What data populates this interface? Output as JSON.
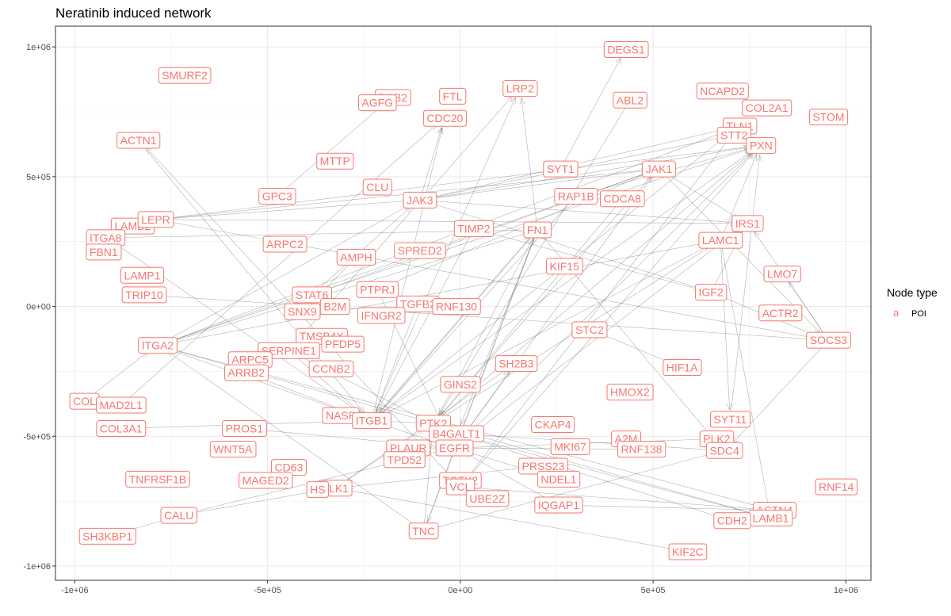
{
  "chart_data": {
    "type": "network",
    "title": "Neratinib induced network",
    "xlabel": "",
    "ylabel": "",
    "xlim": [
      -1050000,
      1065000
    ],
    "ylim": [
      -1055000,
      1080000
    ],
    "x_ticks": [
      -1000000,
      -500000,
      0,
      500000,
      1000000
    ],
    "x_tick_labels": [
      "-1e+06",
      "-5e+05",
      "0e+00",
      "5e+05",
      "1e+06"
    ],
    "y_ticks": [
      1000000,
      500000,
      0,
      -500000,
      -1000000
    ],
    "y_tick_labels": [
      "1e+06",
      "5e+05",
      "0e+00",
      "-5e+05",
      "-1e+06"
    ],
    "grid": true,
    "colors": {
      "node": "#f8766d",
      "edge": "#555555",
      "grid": "#ebebeb",
      "panel_border": "#333333"
    },
    "legend": {
      "title": "Node type",
      "key": "a",
      "label": "POI",
      "position": "right"
    },
    "nodes": [
      {
        "label": "DEGS1",
        "x": 430000,
        "y": 990000
      },
      {
        "label": "SMURF2",
        "x": -715000,
        "y": 890000
      },
      {
        "label": "LRP2",
        "x": 155000,
        "y": 840000
      },
      {
        "label": "NCAPD2",
        "x": 680000,
        "y": 830000
      },
      {
        "label": "FTL",
        "x": -20000,
        "y": 810000
      },
      {
        "label": "DAB2",
        "x": -175000,
        "y": 805000
      },
      {
        "label": "ABL2",
        "x": 440000,
        "y": 795000
      },
      {
        "label": "AGFG",
        "x": -215000,
        "y": 785000
      },
      {
        "label": "COL2A1",
        "x": 795000,
        "y": 765000
      },
      {
        "label": "CDC20",
        "x": -40000,
        "y": 725000
      },
      {
        "label": "STOM",
        "x": 955000,
        "y": 730000
      },
      {
        "label": "TLN1",
        "x": 725000,
        "y": 695000
      },
      {
        "label": "STT2",
        "x": 710000,
        "y": 660000
      },
      {
        "label": "ACTN1",
        "x": -835000,
        "y": 640000
      },
      {
        "label": "PXN",
        "x": 780000,
        "y": 620000
      },
      {
        "label": "MTTP",
        "x": -325000,
        "y": 560000
      },
      {
        "label": "SYT1",
        "x": 260000,
        "y": 530000
      },
      {
        "label": "JAK1",
        "x": 515000,
        "y": 530000
      },
      {
        "label": "CLU",
        "x": -215000,
        "y": 460000
      },
      {
        "label": "GPC3",
        "x": -475000,
        "y": 425000
      },
      {
        "label": "RAP1B",
        "x": 300000,
        "y": 425000
      },
      {
        "label": "CDCA8",
        "x": 420000,
        "y": 415000
      },
      {
        "label": "JAK3",
        "x": -105000,
        "y": 410000
      },
      {
        "label": "IRS1",
        "x": 745000,
        "y": 320000
      },
      {
        "label": "LAMB2",
        "x": -850000,
        "y": 310000
      },
      {
        "label": "LEPR",
        "x": -790000,
        "y": 335000
      },
      {
        "label": "TIMP2",
        "x": 35000,
        "y": 300000
      },
      {
        "label": "FN1",
        "x": 200000,
        "y": 295000
      },
      {
        "label": "ITGA8",
        "x": -920000,
        "y": 265000
      },
      {
        "label": "LAMC1",
        "x": 675000,
        "y": 255000
      },
      {
        "label": "ARPC2",
        "x": -455000,
        "y": 240000
      },
      {
        "label": "SPRED2",
        "x": -105000,
        "y": 215000
      },
      {
        "label": "FBN1",
        "x": -925000,
        "y": 210000
      },
      {
        "label": "AMPH",
        "x": -270000,
        "y": 190000
      },
      {
        "label": "KIF15",
        "x": 270000,
        "y": 155000
      },
      {
        "label": "LMO7",
        "x": 835000,
        "y": 125000
      },
      {
        "label": "LAMP1",
        "x": -825000,
        "y": 120000
      },
      {
        "label": "PTPRJ",
        "x": -215000,
        "y": 65000
      },
      {
        "label": "IGF2",
        "x": 650000,
        "y": 55000
      },
      {
        "label": "TRIP10",
        "x": -820000,
        "y": 45000
      },
      {
        "label": "STAT6",
        "x": -385000,
        "y": 45000
      },
      {
        "label": "TGFB2",
        "x": -110000,
        "y": 10000
      },
      {
        "label": "B2M",
        "x": -325000,
        "y": 0
      },
      {
        "label": "RNF130",
        "x": -10000,
        "y": 0
      },
      {
        "label": "SNX9",
        "x": -410000,
        "y": -20000
      },
      {
        "label": "ACTR2",
        "x": 830000,
        "y": -25000
      },
      {
        "label": "IFNGR2",
        "x": -205000,
        "y": -35000
      },
      {
        "label": "STC2",
        "x": 335000,
        "y": -90000
      },
      {
        "label": "TMSB4X",
        "x": -360000,
        "y": -115000
      },
      {
        "label": "SOCS3",
        "x": 955000,
        "y": -130000
      },
      {
        "label": "ITGA2",
        "x": -785000,
        "y": -150000
      },
      {
        "label": "PFDP5",
        "x": -305000,
        "y": -145000
      },
      {
        "label": "SERPINE1",
        "x": -445000,
        "y": -170000
      },
      {
        "label": "ARPC5",
        "x": -545000,
        "y": -205000
      },
      {
        "label": "SH2B3",
        "x": 145000,
        "y": -220000
      },
      {
        "label": "HIF1A",
        "x": 575000,
        "y": -235000
      },
      {
        "label": "CCNB2",
        "x": -335000,
        "y": -240000
      },
      {
        "label": "ARRB2",
        "x": -555000,
        "y": -255000
      },
      {
        "label": "GINS2",
        "x": 0,
        "y": -300000
      },
      {
        "label": "HMOX2",
        "x": 440000,
        "y": -330000
      },
      {
        "label": "COL",
        "x": -975000,
        "y": -365000
      },
      {
        "label": "MAD2L1",
        "x": -880000,
        "y": -380000
      },
      {
        "label": "NASP",
        "x": -310000,
        "y": -420000
      },
      {
        "label": "SYT11",
        "x": 700000,
        "y": -435000
      },
      {
        "label": "ITGB1",
        "x": -230000,
        "y": -440000
      },
      {
        "label": "PTK2",
        "x": -70000,
        "y": -450000
      },
      {
        "label": "CKAP4",
        "x": 240000,
        "y": -455000
      },
      {
        "label": "COL3A1",
        "x": -880000,
        "y": -470000
      },
      {
        "label": "PROS1",
        "x": -560000,
        "y": -470000
      },
      {
        "label": "B4GALT1",
        "x": -10000,
        "y": -490000
      },
      {
        "label": "PLK2",
        "x": 665000,
        "y": -510000
      },
      {
        "label": "A2M",
        "x": 430000,
        "y": -510000
      },
      {
        "label": "MKI67",
        "x": 285000,
        "y": -540000
      },
      {
        "label": "RNF138",
        "x": 470000,
        "y": -550000
      },
      {
        "label": "PLAUR",
        "x": -135000,
        "y": -545000
      },
      {
        "label": "EGFR",
        "x": -15000,
        "y": -545000
      },
      {
        "label": "WNT5A",
        "x": -590000,
        "y": -550000
      },
      {
        "label": "SDC4",
        "x": 685000,
        "y": -555000
      },
      {
        "label": "TPD52",
        "x": -145000,
        "y": -590000
      },
      {
        "label": "PRSS23",
        "x": 215000,
        "y": -615000
      },
      {
        "label": "CD63",
        "x": -445000,
        "y": -620000
      },
      {
        "label": "NDEL1",
        "x": 255000,
        "y": -665000
      },
      {
        "label": "TNFRSF1B",
        "x": -785000,
        "y": -665000
      },
      {
        "label": "MAGED2",
        "x": -505000,
        "y": -670000
      },
      {
        "label": "TCTX2",
        "x": 0,
        "y": -670000
      },
      {
        "label": "RNF14",
        "x": 975000,
        "y": -695000
      },
      {
        "label": "VCL",
        "x": 0,
        "y": -695000
      },
      {
        "label": "PLK1",
        "x": -325000,
        "y": -700000
      },
      {
        "label": "HS",
        "x": -370000,
        "y": -705000
      },
      {
        "label": "UBE2Z",
        "x": 70000,
        "y": -740000
      },
      {
        "label": "IQGAP1",
        "x": 255000,
        "y": -765000
      },
      {
        "label": "ACTN4",
        "x": 815000,
        "y": -785000
      },
      {
        "label": "CALU",
        "x": -730000,
        "y": -805000
      },
      {
        "label": "LAMB1",
        "x": 805000,
        "y": -815000
      },
      {
        "label": "CDH2",
        "x": 705000,
        "y": -825000
      },
      {
        "label": "TNC",
        "x": -95000,
        "y": -865000
      },
      {
        "label": "SH3KBP1",
        "x": -915000,
        "y": -885000
      },
      {
        "label": "KIF2C",
        "x": 590000,
        "y": -945000
      }
    ],
    "edges": [
      [
        "JAK3",
        "JAK1"
      ],
      [
        "JAK3",
        "PXN"
      ],
      [
        "JAK3",
        "IRS1"
      ],
      [
        "JAK3",
        "CDC20"
      ],
      [
        "JAK3",
        "TLN1"
      ],
      [
        "JAK3",
        "STT2"
      ],
      [
        "LEPR",
        "JAK1"
      ],
      [
        "LEPR",
        "JAK3"
      ],
      [
        "LEPR",
        "PXN"
      ],
      [
        "LEPR",
        "SOCS3"
      ],
      [
        "LEPR",
        "IRS1"
      ],
      [
        "JAK1",
        "SOCS3"
      ],
      [
        "JAK1",
        "IRS1"
      ],
      [
        "JAK1",
        "ITGA2"
      ],
      [
        "FN1",
        "ITGB1"
      ],
      [
        "FN1",
        "ITGA2"
      ],
      [
        "FN1",
        "LRP2"
      ],
      [
        "FN1",
        "PTK2"
      ],
      [
        "FN1",
        "ITGA8"
      ],
      [
        "FN1",
        "B4GALT1"
      ],
      [
        "FN1",
        "TNC"
      ],
      [
        "FN1",
        "SDC4"
      ],
      [
        "ITGA2",
        "ITGB1"
      ],
      [
        "ITGA2",
        "PXN"
      ],
      [
        "ITGA2",
        "LAMC1"
      ],
      [
        "ITGA2",
        "LAMB1"
      ],
      [
        "ITGA2",
        "ACTN4"
      ],
      [
        "ITGA2",
        "JAK3"
      ],
      [
        "ITGB1",
        "PXN"
      ],
      [
        "ITGB1",
        "PTK2"
      ],
      [
        "ITGB1",
        "TLN1"
      ],
      [
        "ITGB1",
        "EGFR"
      ],
      [
        "ITGB1",
        "FN1"
      ],
      [
        "ITGB1",
        "LAMC1"
      ],
      [
        "ITGB1",
        "ITGA8"
      ],
      [
        "ITGB1",
        "CDC20"
      ],
      [
        "ITGB1",
        "LRP2"
      ],
      [
        "PTK2",
        "PXN"
      ],
      [
        "PTK2",
        "EGFR"
      ],
      [
        "PTK2",
        "JAK1"
      ],
      [
        "PTK2",
        "IRS1"
      ],
      [
        "EGFR",
        "PXN"
      ],
      [
        "EGFR",
        "SH2B3"
      ],
      [
        "EGFR",
        "IRS1"
      ],
      [
        "EGFR",
        "PLAUR"
      ],
      [
        "EGFR",
        "NDEL1"
      ],
      [
        "EGFR",
        "RNF138"
      ],
      [
        "EGFR",
        "PLK2"
      ],
      [
        "EGFR",
        "JAK1"
      ],
      [
        "VCL",
        "PXN"
      ],
      [
        "VCL",
        "TLN1"
      ],
      [
        "VCL",
        "ACTN4"
      ],
      [
        "VCL",
        "ACTN1"
      ],
      [
        "B4GALT1",
        "LAMB1"
      ],
      [
        "B4GALT1",
        "CDH2"
      ],
      [
        "B4GALT1",
        "SDC4"
      ],
      [
        "TNC",
        "ITGA2"
      ],
      [
        "TNC",
        "FN1"
      ],
      [
        "TNC",
        "PTK2"
      ],
      [
        "TNC",
        "SDC4"
      ],
      [
        "CALU",
        "SH3KBP1"
      ],
      [
        "CALU",
        "PLK1"
      ],
      [
        "CALU",
        "EGFR"
      ],
      [
        "PLK1",
        "PTK2"
      ],
      [
        "PLK1",
        "SH2B3"
      ],
      [
        "PLK1",
        "PRSS23"
      ],
      [
        "SERPINE1",
        "ITGB1"
      ],
      [
        "SERPINE1",
        "LRP2"
      ],
      [
        "SERPINE1",
        "PTK2"
      ],
      [
        "TIMP2",
        "ITGB1"
      ],
      [
        "TIMP2",
        "IGF2"
      ],
      [
        "TGFB2",
        "ITGB1"
      ],
      [
        "IGF2",
        "SOCS3"
      ],
      [
        "IGF2",
        "IRS1"
      ],
      [
        "IGF2",
        "JAK3"
      ],
      [
        "SOCS3",
        "IRS1"
      ],
      [
        "SOCS3",
        "SDC4"
      ],
      [
        "SOCS3",
        "LMO7"
      ],
      [
        "LAMC1",
        "LAMB1"
      ],
      [
        "LAMC1",
        "SYT11"
      ],
      [
        "LAMC1",
        "PXN"
      ],
      [
        "SYT11",
        "PXN"
      ],
      [
        "SYT1",
        "DEGS1"
      ],
      [
        "ABL2",
        "PTK2"
      ],
      [
        "GPC3",
        "DAB2"
      ],
      [
        "COL3A1",
        "ITGB1"
      ],
      [
        "COL",
        "ITGA2"
      ],
      [
        "MAD2L1",
        "CDC20"
      ],
      [
        "PROS1",
        "EGFR"
      ],
      [
        "ARRB2",
        "ITGB1"
      ],
      [
        "HIF1A",
        "STC2"
      ],
      [
        "KIF2C",
        "PLK1"
      ],
      [
        "IQGAP1",
        "EGFR"
      ],
      [
        "IQGAP1",
        "ACTN4"
      ],
      [
        "ACTN1",
        "ITGB1"
      ],
      [
        "STAT6",
        "JAK1"
      ],
      [
        "STAT6",
        "JAK3"
      ],
      [
        "AMPH",
        "SNX9"
      ],
      [
        "PTPRJ",
        "EGFR"
      ],
      [
        "PTPRJ",
        "JAK1"
      ],
      [
        "RAP1B",
        "ITGB1"
      ],
      [
        "RAP1B",
        "PXN"
      ],
      [
        "CDCA8",
        "PTK2"
      ],
      [
        "TRIP10",
        "SOCS3"
      ],
      [
        "TLN1",
        "ITGA2"
      ]
    ]
  }
}
